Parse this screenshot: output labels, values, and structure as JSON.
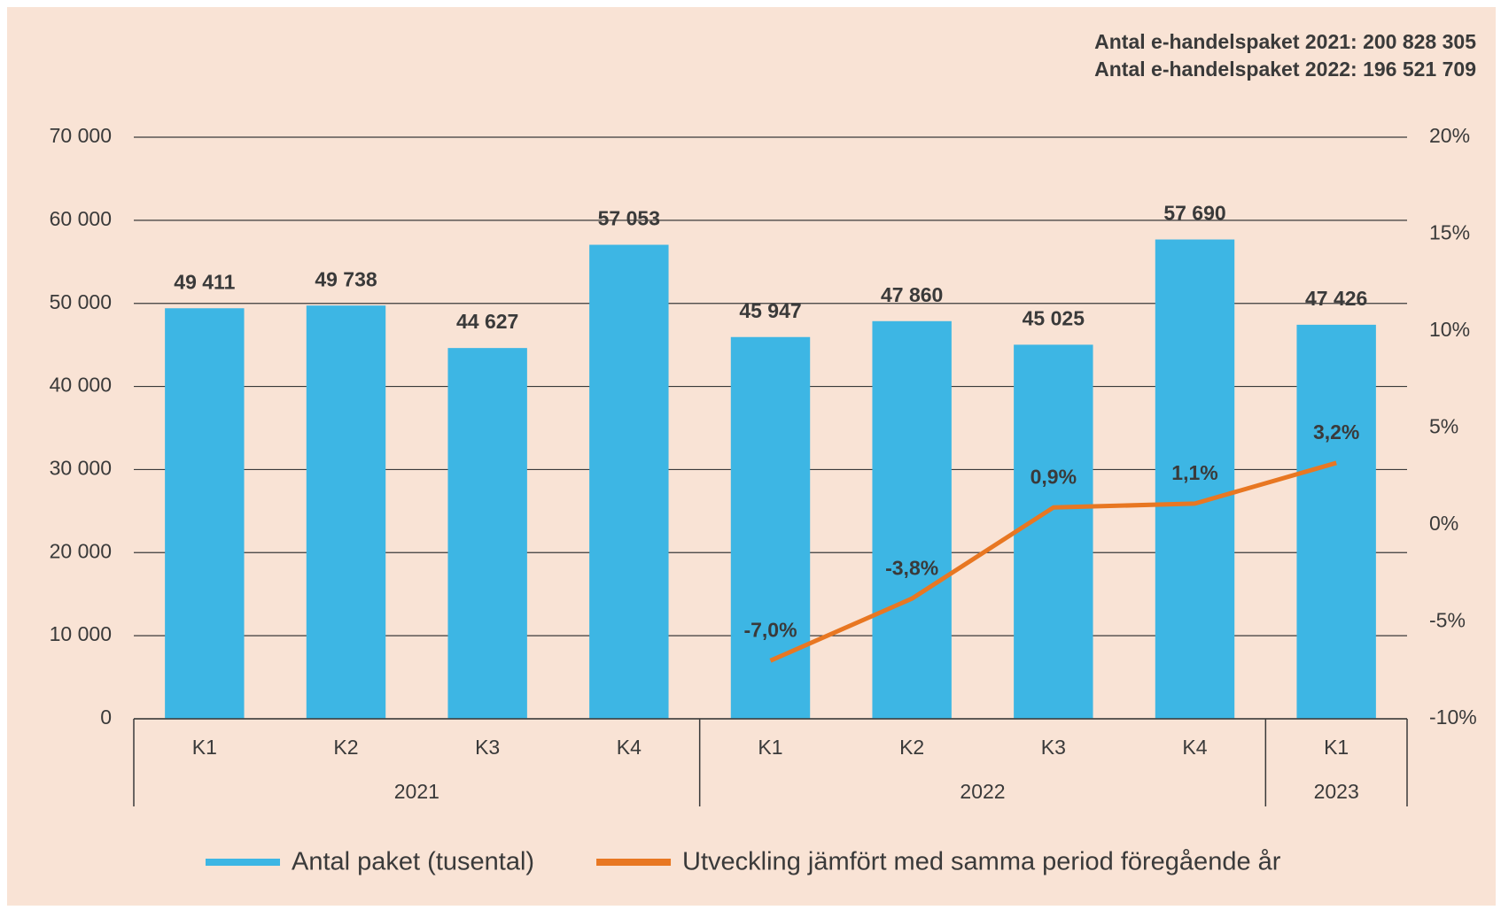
{
  "chart_data": {
    "type": "bar",
    "annotations": [
      "Antal e-handelspaket 2021: 200 828 305",
      "Antal e-handelspaket 2022: 196 521 709"
    ],
    "groups": [
      {
        "label": "2021",
        "categories": [
          "K1",
          "K2",
          "K3",
          "K4"
        ]
      },
      {
        "label": "2022",
        "categories": [
          "K1",
          "K2",
          "K3",
          "K4"
        ]
      },
      {
        "label": "2023",
        "categories": [
          "K1"
        ]
      }
    ],
    "series": [
      {
        "name": "Antal paket (tusental)",
        "type": "bar",
        "color": "#3db6e4",
        "values": [
          49411,
          49738,
          44627,
          57053,
          45947,
          47860,
          45025,
          57690,
          47426
        ],
        "value_labels": [
          "49 411",
          "49 738",
          "44 627",
          "57 053",
          "45 947",
          "47 860",
          "45 025",
          "57 690",
          "47 426"
        ]
      },
      {
        "name": "Utveckling jämfört med samma period föregående år",
        "type": "line",
        "axis": "y2",
        "color": "#e87722",
        "values": [
          null,
          null,
          null,
          null,
          -7.0,
          -3.8,
          0.9,
          1.1,
          3.2
        ],
        "value_labels": [
          null,
          null,
          null,
          null,
          "-7,0%",
          "-3,8%",
          "0,9%",
          "1,1%",
          "3,2%"
        ]
      }
    ],
    "ylim": [
      0,
      70000
    ],
    "yticks": [
      0,
      {
        "value": 10000,
        "label": "10 000"
      },
      {
        "value": 20000,
        "label": "20 000"
      },
      {
        "value": 30000,
        "label": "30 000"
      },
      {
        "value": 40000,
        "label": "40 000"
      },
      {
        "value": 50000,
        "label": "50 000"
      },
      {
        "value": 60000,
        "label": "60 000"
      },
      {
        "value": 70000,
        "label": "70 000"
      }
    ],
    "y2lim": [
      -10,
      20
    ],
    "y2ticks": [
      {
        "value": -10,
        "label": "-10%"
      },
      {
        "value": -5,
        "label": "-5%"
      },
      {
        "value": 0,
        "label": "0%"
      },
      {
        "value": 5,
        "label": "5%"
      },
      {
        "value": 10,
        "label": "10%"
      },
      {
        "value": 15,
        "label": "15%"
      },
      {
        "value": 20,
        "label": "20%"
      }
    ],
    "grid": true,
    "legend": "bottom"
  }
}
